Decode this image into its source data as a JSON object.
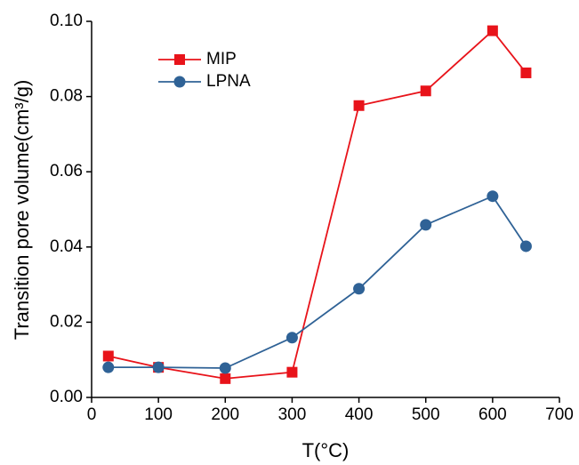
{
  "chart_data": {
    "type": "line",
    "x_label": "T(°C)",
    "y_label": "Transition pore volume(cm³/g)",
    "x": [
      25,
      100,
      200,
      300,
      400,
      500,
      600,
      650
    ],
    "series": [
      {
        "name": "MIP",
        "color": "#e8131a",
        "marker": "square",
        "values": [
          0.011,
          0.008,
          0.005,
          0.0067,
          0.0776,
          0.0815,
          0.0975,
          0.0863
        ]
      },
      {
        "name": "LPNA",
        "color": "#2f6296",
        "marker": "circle",
        "values": [
          0.008,
          0.008,
          0.0078,
          0.0159,
          0.0289,
          0.0459,
          0.0535,
          0.0402
        ]
      }
    ],
    "xlim": [
      0,
      700
    ],
    "xticks": [
      0,
      100,
      200,
      300,
      400,
      500,
      600,
      700
    ],
    "ylim": [
      0,
      0.1
    ],
    "yticks": [
      {
        "value": 0,
        "label": "0.00"
      },
      {
        "value": 0.02,
        "label": "0.02"
      },
      {
        "value": 0.04,
        "label": "0.04"
      },
      {
        "value": 0.06,
        "label": "0.06"
      },
      {
        "value": 0.08,
        "label": "0.08"
      },
      {
        "value": 0.1,
        "label": "0.10"
      }
    ],
    "legend": "upper-left"
  }
}
